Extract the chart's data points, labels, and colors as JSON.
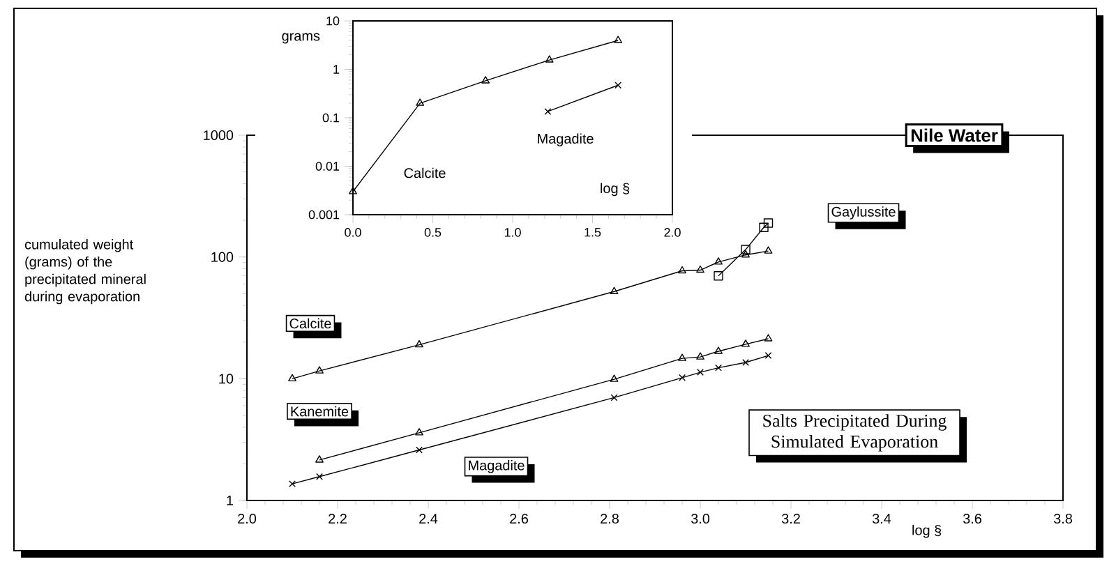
{
  "chart_data": [
    {
      "type": "line",
      "title": "Nile Water",
      "subtitle": "Salts Precipitated During Simulated Evaporation",
      "xlabel": "log §",
      "ylabel": "cumulated weight (grams) of the precipitated mineral during evaporation",
      "log": "y",
      "xlim": [
        2.0,
        3.8
      ],
      "ylim": [
        1,
        1000
      ],
      "xticks": [
        {
          "value": 2.0,
          "label": "2.0"
        },
        {
          "value": 2.2,
          "label": "2.2"
        },
        {
          "value": 2.4,
          "label": "2.4"
        },
        {
          "value": 2.6,
          "label": "2.6"
        },
        {
          "value": 2.8,
          "label": "2.8"
        },
        {
          "value": 3.0,
          "label": "3.0"
        },
        {
          "value": 3.2,
          "label": "3.2"
        },
        {
          "value": 3.4,
          "label": "3.4"
        },
        {
          "value": 3.6,
          "label": "3.6"
        },
        {
          "value": 3.8,
          "label": "3.8"
        }
      ],
      "yticks": [
        1,
        10,
        100,
        1000
      ],
      "series": [
        {
          "name": "Calcite",
          "color": "#000000",
          "marker": "triangle",
          "x": [
            2.1,
            2.16,
            2.38,
            2.81,
            2.96,
            3.0,
            3.04,
            3.1,
            3.15
          ],
          "values": [
            10,
            11.6,
            19,
            52,
            77,
            78,
            91,
            104,
            112
          ]
        },
        {
          "name": "Kanemite",
          "color": "#000000",
          "marker": "triangle",
          "x": [
            2.16,
            2.38,
            2.81,
            2.96,
            3.0,
            3.04,
            3.1,
            3.15
          ],
          "values": [
            2.15,
            3.6,
            9.9,
            14.7,
            15.1,
            16.8,
            19.2,
            21.3
          ]
        },
        {
          "name": "Magadite",
          "color": "#000000",
          "marker": "cross",
          "x": [
            2.1,
            2.16,
            2.38,
            2.81,
            2.96,
            3.0,
            3.04,
            3.1,
            3.15
          ],
          "values": [
            1.37,
            1.57,
            2.6,
            7.0,
            10.2,
            11.3,
            12.3,
            13.6,
            15.5
          ]
        },
        {
          "name": "Gaylussite",
          "color": "#000000",
          "marker": "square",
          "x": [
            3.04,
            3.1,
            3.14,
            3.15
          ],
          "values": [
            70,
            115,
            175,
            190
          ]
        }
      ]
    },
    {
      "type": "line",
      "xlabel": "log §",
      "ylabel": "grams",
      "log": "y",
      "xlim": [
        0.0,
        2.0
      ],
      "ylim": [
        0.001,
        10
      ],
      "xticks": [
        {
          "value": 0.0,
          "label": "0.0"
        },
        {
          "value": 0.5,
          "label": "0.5"
        },
        {
          "value": 1.0,
          "label": "1.0"
        },
        {
          "value": 1.5,
          "label": "1.5"
        },
        {
          "value": 2.0,
          "label": "2.0"
        }
      ],
      "yticks": [
        0.001,
        0.01,
        0.1,
        1,
        10
      ],
      "series": [
        {
          "name": "Calcite",
          "color": "#000000",
          "marker": "triangle",
          "x": [
            0.0,
            0.42,
            0.83,
            1.23,
            1.66
          ],
          "values": [
            0.003,
            0.2,
            0.58,
            1.56,
            3.95
          ]
        },
        {
          "name": "Magadite",
          "color": "#000000",
          "marker": "cross",
          "x": [
            1.22,
            1.66
          ],
          "values": [
            0.135,
            0.47
          ]
        }
      ]
    }
  ]
}
